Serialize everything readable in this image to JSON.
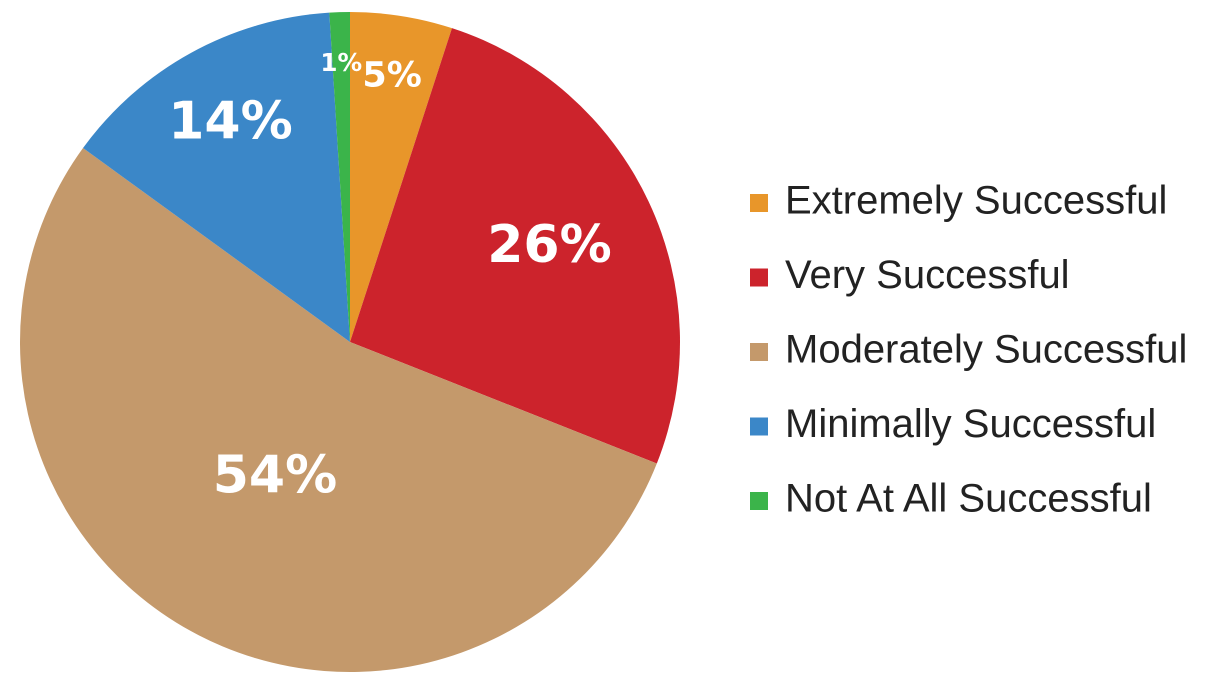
{
  "chart_data": {
    "type": "pie",
    "categories": [
      "Extremely Successful",
      "Very Successful",
      "Moderately Successful",
      "Minimally Successful",
      "Not At All Successful"
    ],
    "values": [
      5,
      26,
      54,
      14,
      1
    ],
    "value_labels": [
      "5%",
      "26%",
      "54%",
      "14%",
      "1%"
    ],
    "colors": [
      "#e8962a",
      "#cc232c",
      "#c4996b",
      "#3b87c8",
      "#3bb44a"
    ],
    "legend": "right"
  }
}
